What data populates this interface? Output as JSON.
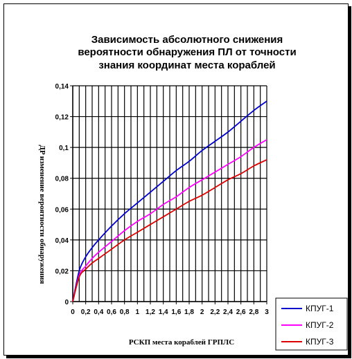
{
  "chart_data": {
    "type": "line",
    "title_lines": [
      "Зависимость абсолютного снижения",
      "вероятности обнаружения ПЛ от точности",
      "знания координат места кораблей"
    ],
    "xlabel": "РСКП места кораблей ГРПЛС",
    "ylabel": "ДP изменение вероятности обнаружения",
    "xlim": [
      0,
      3
    ],
    "ylim": [
      0,
      0.14
    ],
    "x_ticks": [
      "0",
      "0,2",
      "0,4",
      "0,6",
      "0,8",
      "1",
      "1,2",
      "1,4",
      "1,6",
      "1,8",
      "2",
      "2,2",
      "2,4",
      "2,6",
      "2,8",
      "3"
    ],
    "y_ticks": [
      "0",
      "0,02",
      "0,04",
      "0,06",
      "0,08",
      "0,1",
      "0,12",
      "0,14"
    ],
    "grid": true,
    "legend_position": "bottom-right",
    "x": [
      0,
      0.1,
      0.2,
      0.3,
      0.4,
      0.6,
      0.8,
      1.0,
      1.2,
      1.4,
      1.6,
      1.8,
      2.0,
      2.2,
      2.4,
      2.6,
      2.8,
      3.0
    ],
    "series": [
      {
        "name": "КПУГ-1",
        "color": "#0000cc",
        "values": [
          0,
          0.02,
          0.029,
          0.035,
          0.04,
          0.049,
          0.057,
          0.064,
          0.071,
          0.078,
          0.085,
          0.091,
          0.098,
          0.104,
          0.11,
          0.117,
          0.124,
          0.13
        ]
      },
      {
        "name": "КПУГ-2",
        "color": "#ff00ff",
        "values": [
          0,
          0.017,
          0.023,
          0.028,
          0.032,
          0.039,
          0.046,
          0.052,
          0.057,
          0.063,
          0.068,
          0.074,
          0.079,
          0.084,
          0.089,
          0.094,
          0.1,
          0.105
        ]
      },
      {
        "name": "КПУГ-3",
        "color": "#dd0000",
        "values": [
          0,
          0.016,
          0.021,
          0.025,
          0.028,
          0.034,
          0.04,
          0.045,
          0.05,
          0.055,
          0.06,
          0.065,
          0.069,
          0.074,
          0.079,
          0.083,
          0.088,
          0.092
        ]
      }
    ]
  }
}
